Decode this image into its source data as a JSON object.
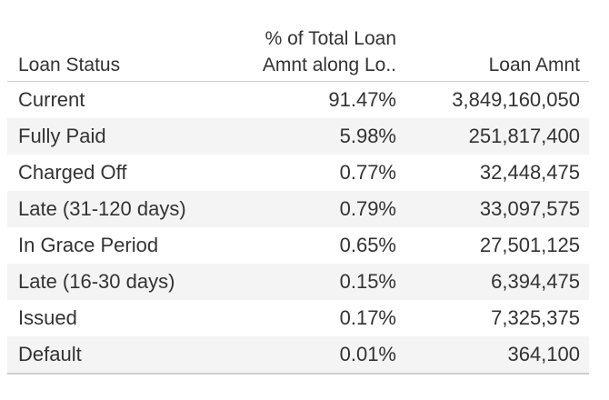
{
  "chart_data": {
    "type": "table",
    "columns": [
      "Loan Status",
      "% of Total Loan Amnt along Lo..",
      "Loan Amnt"
    ],
    "rows": [
      {
        "status": "Current",
        "pct": "91.47%",
        "amount": "3,849,160,050"
      },
      {
        "status": "Fully Paid",
        "pct": "5.98%",
        "amount": "251,817,400"
      },
      {
        "status": "Charged Off",
        "pct": "0.77%",
        "amount": "32,448,475"
      },
      {
        "status": "Late (31-120 days)",
        "pct": "0.79%",
        "amount": "33,097,575"
      },
      {
        "status": "In Grace Period",
        "pct": "0.65%",
        "amount": "27,501,125"
      },
      {
        "status": "Late (16-30 days)",
        "pct": "0.15%",
        "amount": "6,394,475"
      },
      {
        "status": "Issued",
        "pct": "0.17%",
        "amount": "7,325,375"
      },
      {
        "status": "Default",
        "pct": "0.01%",
        "amount": "364,100"
      }
    ]
  },
  "headers": {
    "status": "Loan Status",
    "pct_line1": "% of Total Loan",
    "pct_line2": "Amnt along Lo..",
    "amount": "Loan Amnt"
  }
}
